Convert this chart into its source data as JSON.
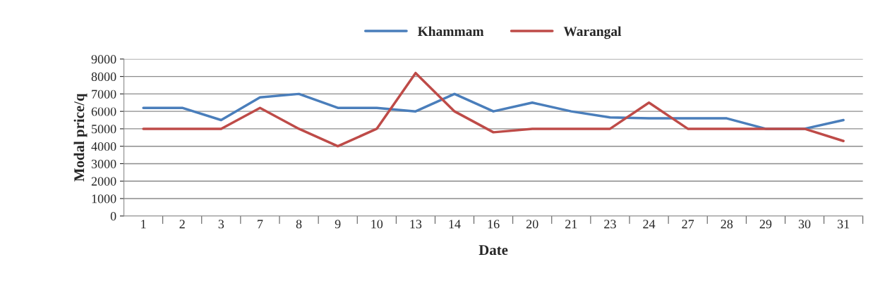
{
  "chart_data": {
    "type": "line",
    "xlabel": "Date",
    "ylabel": "Modal price/q",
    "categories": [
      "1",
      "2",
      "3",
      "7",
      "8",
      "9",
      "10",
      "13",
      "14",
      "16",
      "20",
      "21",
      "23",
      "24",
      "27",
      "28",
      "29",
      "30",
      "31"
    ],
    "series": [
      {
        "name": "Khammam",
        "color": "#4a7ebb",
        "values": [
          6200,
          6200,
          5500,
          6800,
          7000,
          6200,
          6200,
          6000,
          7000,
          6000,
          6500,
          6000,
          5650,
          5600,
          5600,
          5600,
          5000,
          5000,
          5500
        ]
      },
      {
        "name": "Warangal",
        "color": "#be4b48",
        "values": [
          5000,
          5000,
          5000,
          6200,
          5000,
          4000,
          5000,
          8200,
          6000,
          4800,
          5000,
          5000,
          5000,
          6500,
          5000,
          5000,
          5000,
          5000,
          4300
        ]
      }
    ],
    "ylim": [
      0,
      9000
    ],
    "yticks": [
      0,
      1000,
      2000,
      3000,
      4000,
      5000,
      6000,
      7000,
      8000,
      9000
    ],
    "grid": "y",
    "legend": "top",
    "marker": "none",
    "line_style": "solid"
  }
}
